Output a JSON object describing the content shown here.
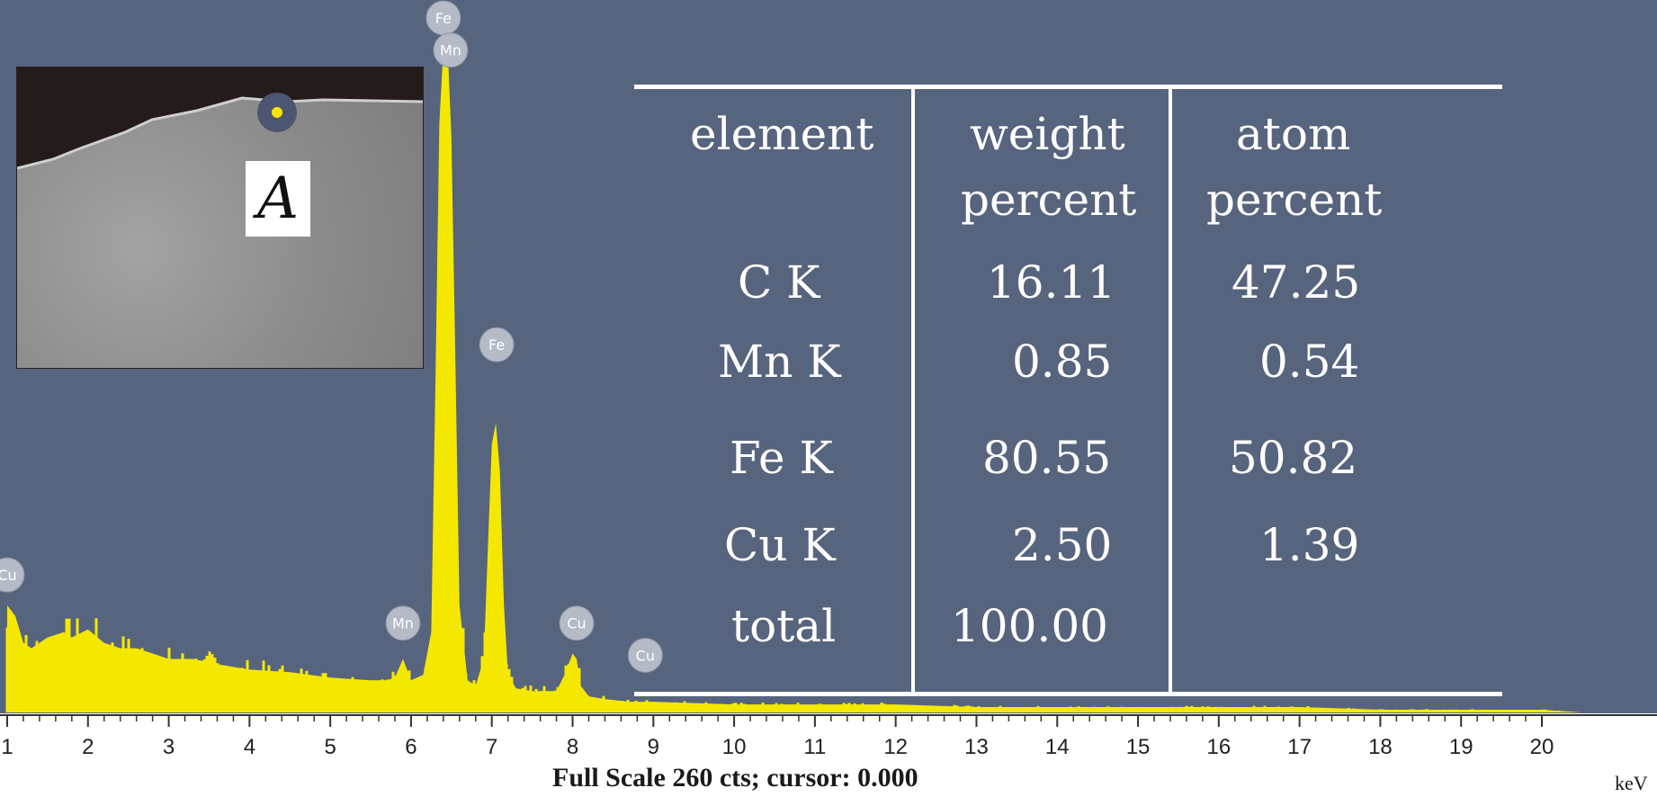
{
  "chart_data": {
    "type": "area",
    "title": "",
    "xlabel": "keV",
    "ylabel": "",
    "xlim": [
      1,
      20.5
    ],
    "ylim": [
      0,
      260
    ],
    "x_ticks": [
      1,
      2,
      3,
      4,
      5,
      6,
      7,
      8,
      9,
      10,
      11,
      12,
      13,
      14,
      15,
      16,
      17,
      18,
      19,
      20
    ],
    "full_scale_label": "Full Scale 260 cts; cursor: 0.000",
    "series_color": "#f5e800",
    "background_color": "#57647e",
    "spectrum": {
      "x": [
        1.0,
        1.1,
        1.2,
        1.3,
        1.5,
        1.7,
        1.8,
        2.0,
        2.2,
        2.4,
        2.6,
        2.8,
        3.0,
        3.3,
        3.6,
        4.0,
        4.5,
        5.0,
        5.5,
        5.7,
        5.8,
        5.9,
        6.0,
        6.15,
        6.25,
        6.3,
        6.35,
        6.4,
        6.45,
        6.5,
        6.55,
        6.6,
        6.7,
        6.8,
        6.9,
        6.95,
        7.0,
        7.05,
        7.1,
        7.15,
        7.2,
        7.3,
        7.5,
        7.8,
        7.9,
        8.0,
        8.05,
        8.1,
        8.2,
        8.4,
        8.7,
        9.0,
        10.0,
        11.0,
        12.0,
        13.0,
        14.0,
        15.0,
        16.0,
        17.0,
        18.0,
        19.0,
        20.0,
        20.5
      ],
      "counts": [
        40,
        36,
        26,
        24,
        28,
        30,
        28,
        31,
        26,
        24,
        24,
        22,
        20,
        20,
        18,
        16,
        15,
        13,
        12,
        12,
        13,
        20,
        12,
        14,
        30,
        120,
        220,
        248,
        250,
        215,
        130,
        40,
        12,
        10,
        20,
        60,
        100,
        108,
        90,
        40,
        14,
        9,
        8,
        8,
        14,
        22,
        20,
        10,
        6,
        5,
        4,
        4,
        3,
        3,
        3,
        2,
        2,
        2,
        2,
        2,
        1,
        1,
        1,
        0
      ]
    },
    "peak_labels": [
      {
        "label": "Fe",
        "x": 6.4,
        "counts": 258
      },
      {
        "label": "Mn",
        "x": 6.49,
        "counts": 246
      },
      {
        "label": "Fe",
        "x": 7.06,
        "counts": 136
      },
      {
        "label": "Mn",
        "x": 5.9,
        "counts": 32
      },
      {
        "label": "Cu",
        "x": 8.05,
        "counts": 32
      },
      {
        "label": "Cu",
        "x": 8.9,
        "counts": 20
      },
      {
        "label": "Cu",
        "x": 1.0,
        "counts": 50
      }
    ]
  },
  "table": {
    "headers": [
      "element",
      "weight percent",
      "atom percent"
    ],
    "header_lines": [
      [
        "element"
      ],
      [
        "weight",
        "percent"
      ],
      [
        "atom",
        "percent"
      ]
    ],
    "rows": [
      {
        "element": "C K",
        "weight": "16.11",
        "atom": "47.25"
      },
      {
        "element": "Mn K",
        "weight": "0.85",
        "atom": "0.54"
      },
      {
        "element": "Fe K",
        "weight": "80.55",
        "atom": "50.82"
      },
      {
        "element": "Cu K",
        "weight": "2.50",
        "atom": "1.39"
      },
      {
        "element": "total",
        "weight": "100.00",
        "atom": ""
      }
    ]
  },
  "inset": {
    "label": "A"
  }
}
